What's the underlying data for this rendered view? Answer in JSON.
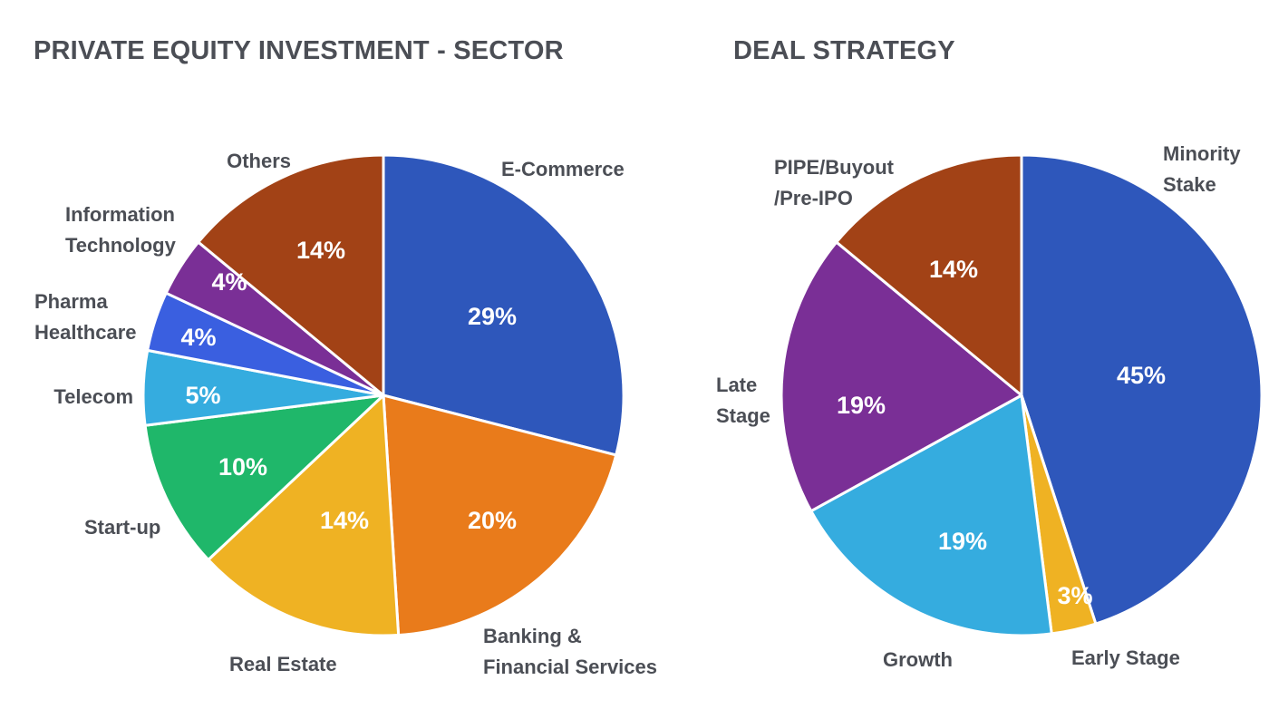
{
  "chart_data": [
    {
      "type": "pie",
      "title": "PRIVATE EQUITY INVESTMENT - SECTOR",
      "slices": [
        {
          "label": [
            "E-Commerce"
          ],
          "value": 29,
          "display": "29%",
          "color": "#2e57bb"
        },
        {
          "label": [
            "Banking &",
            "Financial Services"
          ],
          "value": 20,
          "display": "20%",
          "color": "#e97b1b"
        },
        {
          "label": [
            "Real Estate"
          ],
          "value": 14,
          "display": "14%",
          "color": "#efb223"
        },
        {
          "label": [
            "Start-up"
          ],
          "value": 10,
          "display": "10%",
          "color": "#1fb76a"
        },
        {
          "label": [
            "Telecom"
          ],
          "value": 5,
          "display": "5%",
          "color": "#35acdf"
        },
        {
          "label": [
            "Pharma",
            "Healthcare"
          ],
          "value": 4,
          "display": "4%",
          "color": "#3a5fe0"
        },
        {
          "label": [
            "Information",
            "Technology"
          ],
          "value": 4,
          "display": "4%",
          "color": "#7a2f96"
        },
        {
          "label": [
            "Others"
          ],
          "value": 14,
          "display": "14%",
          "color": "#a24216"
        }
      ]
    },
    {
      "type": "pie",
      "title": "DEAL STRATEGY",
      "slices": [
        {
          "label": [
            "Minority",
            "Stake"
          ],
          "value": 45,
          "display": "45%",
          "color": "#2e57bb"
        },
        {
          "label": [
            "Early Stage"
          ],
          "value": 3,
          "display": "3%",
          "color": "#efb223"
        },
        {
          "label": [
            "Growth"
          ],
          "value": 19,
          "display": "19%",
          "color": "#35acdf"
        },
        {
          "label": [
            "Late",
            "Stage"
          ],
          "value": 19,
          "display": "19%",
          "color": "#7a2f96"
        },
        {
          "label": [
            "PIPE/Buyout",
            "/Pre-IPO"
          ],
          "value": 14,
          "display": "14%",
          "color": "#a24216"
        }
      ]
    }
  ]
}
